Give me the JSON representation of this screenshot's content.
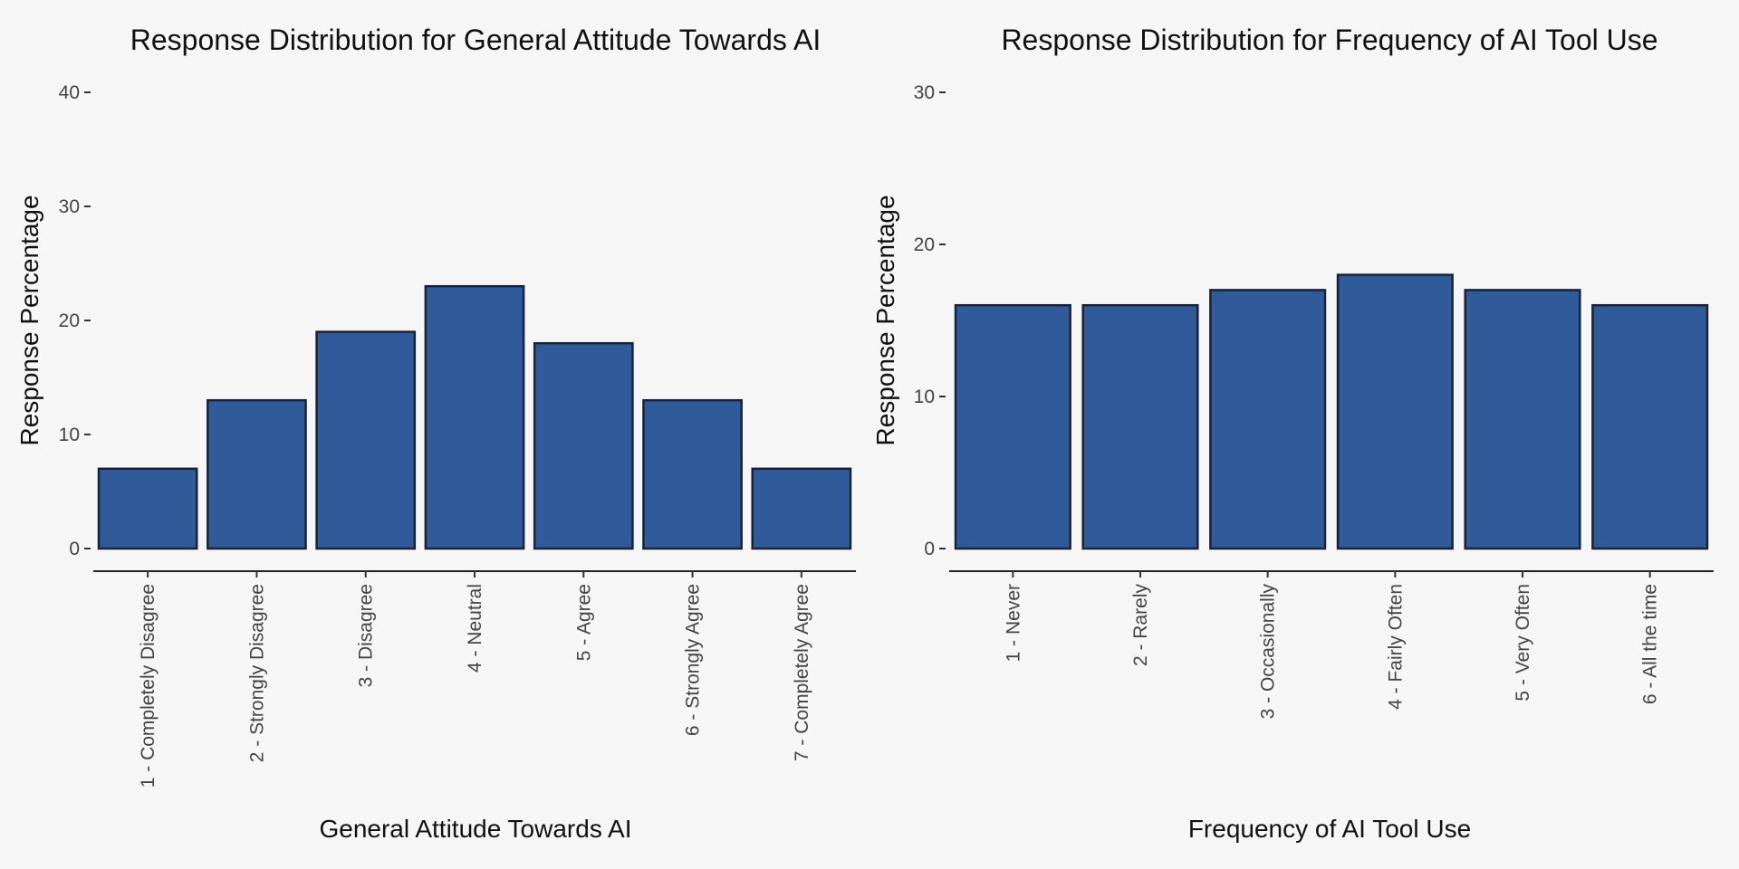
{
  "chart_data": [
    {
      "type": "bar",
      "title": "Response Distribution for General Attitude Towards AI",
      "xlabel": "General Attitude Towards AI",
      "ylabel": "Response Percentage",
      "categories": [
        "1 - Completely Disagree",
        "2 - Strongly Disagree",
        "3 - Disagree",
        "4 - Neutral",
        "5 - Agree",
        "6 - Strongly Agree",
        "7 - Completely Agree"
      ],
      "values": [
        7,
        13,
        19,
        23,
        18,
        13,
        7
      ],
      "ylim": [
        0,
        40
      ],
      "yticks": [
        0,
        10,
        20,
        30,
        40
      ],
      "bar_color": "#2f5b9b",
      "bar_edge_color": "#1a2233",
      "grid": false
    },
    {
      "type": "bar",
      "title": "Response Distribution for Frequency of AI Tool Use",
      "xlabel": "Frequency of AI Tool Use",
      "ylabel": "Response Percentage",
      "categories": [
        "1 - Never",
        "2 - Rarely",
        "3 - Occasionally",
        "4 - Fairly Often",
        "5 - Very Often",
        "6 - All the time"
      ],
      "values": [
        16,
        16,
        17,
        18,
        17,
        16
      ],
      "ylim": [
        0,
        30
      ],
      "yticks": [
        0,
        10,
        20,
        30
      ],
      "bar_color": "#2f5b9b",
      "bar_edge_color": "#1a2233",
      "grid": false
    }
  ]
}
